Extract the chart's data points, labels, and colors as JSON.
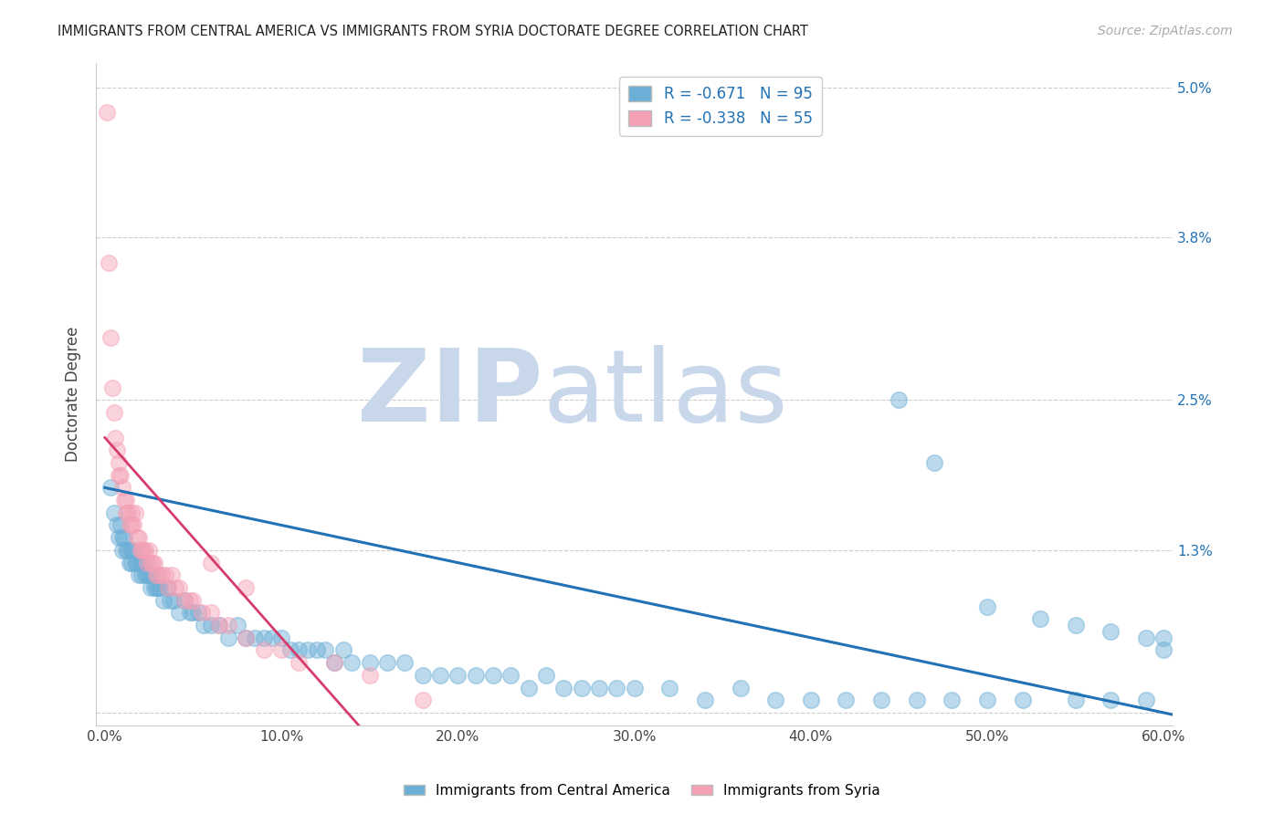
{
  "title": "IMMIGRANTS FROM CENTRAL AMERICA VS IMMIGRANTS FROM SYRIA DOCTORATE DEGREE CORRELATION CHART",
  "source": "Source: ZipAtlas.com",
  "xlabel": "",
  "ylabel": "Doctorate Degree",
  "xlim": [
    -0.005,
    0.605
  ],
  "ylim": [
    -0.001,
    0.052
  ],
  "yticks": [
    0.0,
    0.013,
    0.025,
    0.038,
    0.05
  ],
  "ytick_labels": [
    "",
    "1.3%",
    "2.5%",
    "3.8%",
    "5.0%"
  ],
  "xticks": [
    0.0,
    0.1,
    0.2,
    0.3,
    0.4,
    0.5,
    0.6
  ],
  "xtick_labels": [
    "0.0%",
    "10.0%",
    "20.0%",
    "30.0%",
    "40.0%",
    "50.0%",
    "60.0%"
  ],
  "blue_R": -0.671,
  "blue_N": 95,
  "pink_R": -0.338,
  "pink_N": 55,
  "blue_color": "#6baed6",
  "pink_color": "#f4a0b5",
  "blue_line_color": "#2171b5",
  "pink_line_color": "#d63b6e",
  "pink_line_dash_color": "#f4a0b5",
  "background_color": "#ffffff",
  "grid_color": "#cccccc",
  "watermark_text_zip": "ZIP",
  "watermark_text_atlas": "atlas",
  "watermark_color": "#c8d8ea",
  "legend_label_blue": "Immigrants from Central America",
  "legend_label_pink": "Immigrants from Syria",
  "blue_line_intercept": 0.018,
  "blue_line_slope": -0.03,
  "pink_line_intercept": 0.022,
  "pink_line_slope": -0.16,
  "blue_x": [
    0.003,
    0.005,
    0.007,
    0.008,
    0.009,
    0.01,
    0.01,
    0.011,
    0.012,
    0.013,
    0.014,
    0.015,
    0.015,
    0.016,
    0.017,
    0.018,
    0.019,
    0.02,
    0.021,
    0.022,
    0.023,
    0.024,
    0.025,
    0.026,
    0.027,
    0.028,
    0.029,
    0.03,
    0.031,
    0.033,
    0.035,
    0.037,
    0.039,
    0.042,
    0.045,
    0.048,
    0.05,
    0.053,
    0.056,
    0.06,
    0.065,
    0.07,
    0.075,
    0.08,
    0.085,
    0.09,
    0.095,
    0.1,
    0.105,
    0.11,
    0.115,
    0.12,
    0.125,
    0.13,
    0.135,
    0.14,
    0.15,
    0.16,
    0.17,
    0.18,
    0.19,
    0.2,
    0.21,
    0.22,
    0.23,
    0.24,
    0.25,
    0.26,
    0.27,
    0.28,
    0.29,
    0.3,
    0.32,
    0.34,
    0.36,
    0.38,
    0.4,
    0.42,
    0.44,
    0.46,
    0.48,
    0.5,
    0.52,
    0.55,
    0.57,
    0.59,
    0.45,
    0.47,
    0.5,
    0.53,
    0.55,
    0.57,
    0.59,
    0.6,
    0.6
  ],
  "blue_y": [
    0.018,
    0.016,
    0.015,
    0.014,
    0.015,
    0.014,
    0.013,
    0.014,
    0.013,
    0.013,
    0.012,
    0.013,
    0.012,
    0.013,
    0.012,
    0.012,
    0.011,
    0.012,
    0.011,
    0.012,
    0.011,
    0.011,
    0.011,
    0.01,
    0.011,
    0.01,
    0.01,
    0.01,
    0.01,
    0.009,
    0.01,
    0.009,
    0.009,
    0.008,
    0.009,
    0.008,
    0.008,
    0.008,
    0.007,
    0.007,
    0.007,
    0.006,
    0.007,
    0.006,
    0.006,
    0.006,
    0.006,
    0.006,
    0.005,
    0.005,
    0.005,
    0.005,
    0.005,
    0.004,
    0.005,
    0.004,
    0.004,
    0.004,
    0.004,
    0.003,
    0.003,
    0.003,
    0.003,
    0.003,
    0.003,
    0.002,
    0.003,
    0.002,
    0.002,
    0.002,
    0.002,
    0.002,
    0.002,
    0.001,
    0.002,
    0.001,
    0.001,
    0.001,
    0.001,
    0.001,
    0.001,
    0.001,
    0.001,
    0.001,
    0.001,
    0.001,
    0.025,
    0.02,
    0.0085,
    0.0075,
    0.007,
    0.0065,
    0.006,
    0.005,
    0.006
  ],
  "pink_x": [
    0.001,
    0.002,
    0.003,
    0.004,
    0.005,
    0.006,
    0.007,
    0.008,
    0.008,
    0.009,
    0.01,
    0.011,
    0.012,
    0.012,
    0.013,
    0.014,
    0.015,
    0.015,
    0.016,
    0.017,
    0.018,
    0.019,
    0.02,
    0.021,
    0.022,
    0.023,
    0.024,
    0.025,
    0.026,
    0.027,
    0.028,
    0.029,
    0.03,
    0.032,
    0.034,
    0.036,
    0.038,
    0.04,
    0.042,
    0.045,
    0.048,
    0.05,
    0.055,
    0.06,
    0.065,
    0.07,
    0.08,
    0.09,
    0.1,
    0.11,
    0.13,
    0.15,
    0.06,
    0.08,
    0.18
  ],
  "pink_y": [
    0.048,
    0.036,
    0.03,
    0.026,
    0.024,
    0.022,
    0.021,
    0.02,
    0.019,
    0.019,
    0.018,
    0.017,
    0.017,
    0.016,
    0.016,
    0.015,
    0.016,
    0.015,
    0.015,
    0.016,
    0.014,
    0.014,
    0.013,
    0.013,
    0.013,
    0.013,
    0.012,
    0.013,
    0.012,
    0.012,
    0.012,
    0.011,
    0.011,
    0.011,
    0.011,
    0.01,
    0.011,
    0.01,
    0.01,
    0.009,
    0.009,
    0.009,
    0.008,
    0.008,
    0.007,
    0.007,
    0.006,
    0.005,
    0.005,
    0.004,
    0.004,
    0.003,
    0.012,
    0.01,
    0.001
  ]
}
